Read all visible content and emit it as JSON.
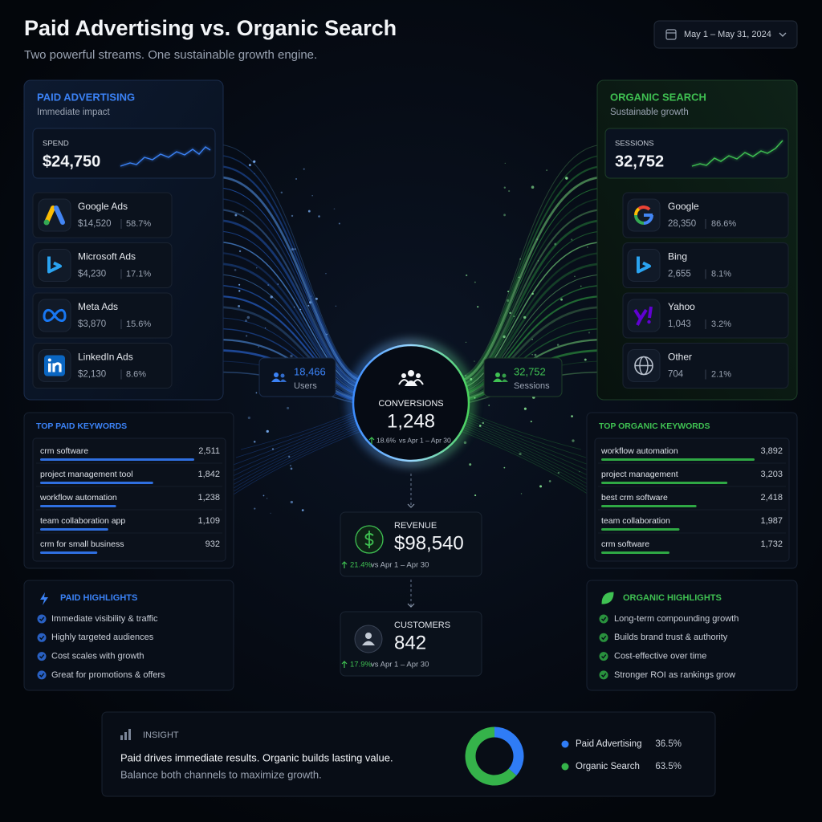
{
  "header": {
    "title": "Paid Advertising vs. Organic Search",
    "subtitle": "Two powerful streams. One sustainable growth engine.",
    "date_range": "May 1 – May 31, 2024"
  },
  "paid": {
    "title": "PAID ADVERTISING",
    "subtitle": "Immediate impact",
    "metric_label": "SPEND",
    "metric_value": "$24,750",
    "sources": [
      {
        "name": "Google Ads",
        "value": "$14,520",
        "share": "58.7%"
      },
      {
        "name": "Microsoft Ads",
        "value": "$4,230",
        "share": "17.1%"
      },
      {
        "name": "Meta Ads",
        "value": "$3,870",
        "share": "15.6%"
      },
      {
        "name": "LinkedIn Ads",
        "value": "$2,130",
        "share": "8.6%"
      }
    ],
    "flow_value": "18,466",
    "flow_label": "Users",
    "keywords": {
      "title": "TOP PAID KEYWORDS",
      "categories": [
        "crm software",
        "project management tool",
        "workflow automation",
        "team collaboration app",
        "crm for small business"
      ],
      "values": [
        2511,
        1842,
        1238,
        1109,
        932
      ],
      "value_labels": [
        "2,511",
        "1,842",
        "1,238",
        "1,109",
        "932"
      ]
    },
    "highlights": {
      "title": "PAID HIGHLIGHTS",
      "items": [
        "Immediate visibility & traffic",
        "Highly targeted audiences",
        "Cost scales with growth",
        "Great for promotions & offers"
      ]
    }
  },
  "organic": {
    "title": "ORGANIC SEARCH",
    "subtitle": "Sustainable growth",
    "metric_label": "SESSIONS",
    "metric_value": "32,752",
    "sources": [
      {
        "name": "Google",
        "value": "28,350",
        "share": "86.6%"
      },
      {
        "name": "Bing",
        "value": "2,655",
        "share": "8.1%"
      },
      {
        "name": "Yahoo",
        "value": "1,043",
        "share": "3.2%"
      },
      {
        "name": "Other",
        "value": "704",
        "share": "2.1%"
      }
    ],
    "flow_value": "32,752",
    "flow_label": "Sessions",
    "keywords": {
      "title": "TOP ORGANIC KEYWORDS",
      "categories": [
        "workflow automation",
        "project management",
        "best crm software",
        "team collaboration",
        "crm software"
      ],
      "values": [
        3892,
        3203,
        2418,
        1987,
        1732
      ],
      "value_labels": [
        "3,892",
        "3,203",
        "2,418",
        "1,987",
        "1,732"
      ]
    },
    "highlights": {
      "title": "ORGANIC HIGHLIGHTS",
      "items": [
        "Long-term compounding growth",
        "Builds brand trust & authority",
        "Cost-effective over time",
        "Stronger ROI as rankings grow"
      ]
    }
  },
  "conversions": {
    "label": "CONVERSIONS",
    "value": "1,248",
    "change": "18.6%",
    "compare": "vs Apr 1 – Apr 30"
  },
  "revenue": {
    "label": "REVENUE",
    "value": "$98,540",
    "change": "21.4%",
    "compare": "vs Apr 1 – Apr 30"
  },
  "customers": {
    "label": "CUSTOMERS",
    "value": "842",
    "change": "17.9%",
    "compare": "vs Apr 1 – Apr 30"
  },
  "insight": {
    "label": "INSIGHT",
    "headline": "Paid drives immediate results. Organic builds lasting value.",
    "text": "Balance both channels to maximize growth.",
    "share_chart": {
      "type": "donut",
      "categories": [
        "Paid Advertising",
        "Organic Search"
      ],
      "values": [
        36.5,
        63.5
      ],
      "value_labels": [
        "36.5%",
        "63.5%"
      ],
      "colors": [
        "#2f7cf6",
        "#35b34a"
      ]
    }
  }
}
